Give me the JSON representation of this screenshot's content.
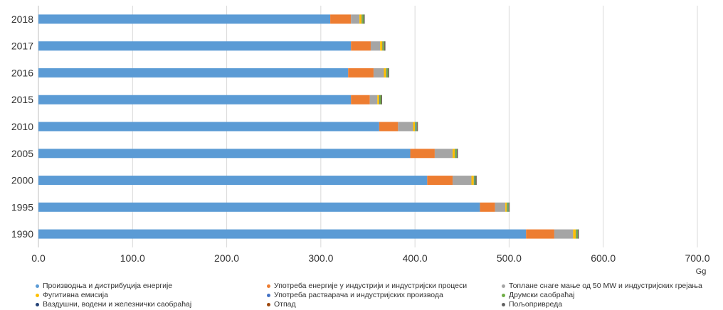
{
  "chart_data": {
    "type": "bar",
    "orientation": "horizontal",
    "stacked": true,
    "categories": [
      "2018",
      "2017",
      "2016",
      "2015",
      "2010",
      "2005",
      "2000",
      "1995",
      "1990"
    ],
    "series": [
      {
        "name": "Производња и дистрибуција енергије",
        "color": "#5b9bd5",
        "values": [
          310,
          332,
          329,
          332,
          362,
          395,
          413,
          469,
          518
        ]
      },
      {
        "name": "Употреба енергије у индустрији и индустријски процеси",
        "color": "#ed7d31",
        "values": [
          22,
          21,
          27,
          20,
          20,
          26,
          27,
          16,
          30
        ]
      },
      {
        "name": "Топлане снаге мање од 50 MW и индустријских грејања",
        "color": "#a5a5a5",
        "values": [
          9,
          10,
          11,
          8,
          16,
          19,
          20,
          11,
          20
        ]
      },
      {
        "name": "Фугитивна емисија",
        "color": "#ffc000",
        "values": [
          2.5,
          2.5,
          2.5,
          2,
          2,
          2.5,
          2.5,
          1.5,
          3
        ]
      },
      {
        "name": "Употреба растварача и индустријских производа",
        "color": "#4472c4",
        "values": [
          0.5,
          0.5,
          0.5,
          0.5,
          0.5,
          0.5,
          0.5,
          0.5,
          0.5
        ]
      },
      {
        "name": "Друмски саобраћај",
        "color": "#70ad47",
        "values": [
          1.5,
          1.5,
          1.5,
          1.5,
          1.5,
          1.5,
          1.5,
          1.5,
          1.5
        ]
      },
      {
        "name": "Ваздушни, водени и железнички саобраћај",
        "color": "#264478",
        "values": [
          0.3,
          0.3,
          0.3,
          0.3,
          0.3,
          0.3,
          0.3,
          0.3,
          0.3
        ]
      },
      {
        "name": "Отпад",
        "color": "#9e480e",
        "values": [
          0.3,
          0.3,
          0.3,
          0.3,
          0.3,
          0.3,
          0.3,
          0.3,
          0.3
        ]
      },
      {
        "name": "Пољопривреда",
        "color": "#636363",
        "values": [
          0.5,
          0.5,
          0.5,
          0.5,
          0.5,
          0.5,
          0.5,
          0.5,
          0.5
        ]
      }
    ],
    "x_ticks": [
      "0.0",
      "100.0",
      "200.0",
      "300.0",
      "400.0",
      "500.0",
      "600.0",
      "700.0"
    ],
    "xlim": [
      0,
      700
    ],
    "xlabel": "Gg",
    "grid": true,
    "legend_position": "bottom"
  }
}
